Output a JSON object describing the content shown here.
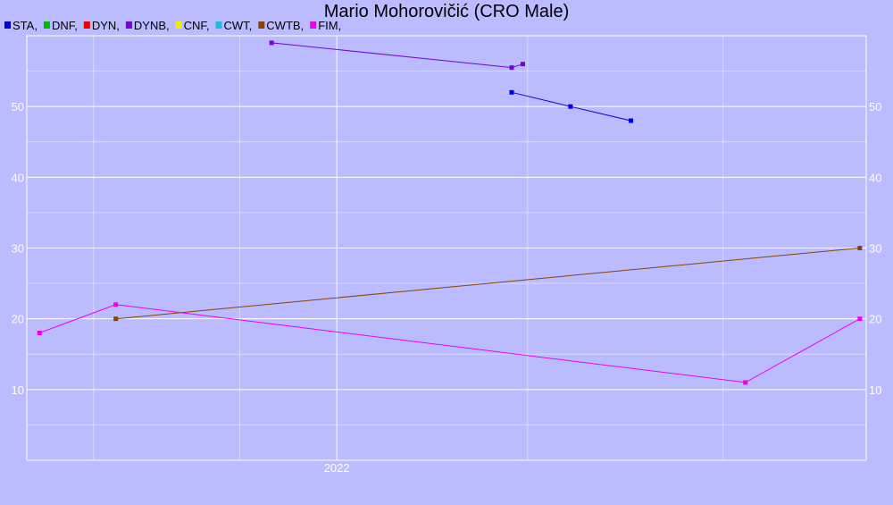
{
  "chart_data": {
    "type": "line",
    "title": "Mario Mohorovičić (CRO Male)",
    "xlabel": "",
    "ylabel": "",
    "x_tick_labels": [
      "2022"
    ],
    "y_ticks": [
      10,
      20,
      30,
      40,
      50
    ],
    "ylim": [
      0,
      60
    ],
    "grid": true,
    "legend_placement": "top-left",
    "legend": [
      {
        "name": "STA",
        "label": "STA,",
        "color": "#0000dd"
      },
      {
        "name": "DNF",
        "label": "DNF,",
        "color": "#00bb00"
      },
      {
        "name": "DYN",
        "label": "DYN,",
        "color": "#ee0000"
      },
      {
        "name": "DYNB",
        "label": "DYNB,",
        "color": "#7700dd"
      },
      {
        "name": "CNF",
        "label": "CNF,",
        "color": "#eeee00"
      },
      {
        "name": "CWT",
        "label": "CWT,",
        "color": "#22bbdd"
      },
      {
        "name": "CWTB",
        "label": "CWTB,",
        "color": "#884400"
      },
      {
        "name": "FIM",
        "label": "FIM,",
        "color": "#ee00ee"
      }
    ],
    "series": [
      {
        "name": "STA",
        "color": "#0000dd",
        "points": [
          {
            "x": "2022-04-21",
            "y": 52
          },
          {
            "x": "2022-05-28",
            "y": 50
          },
          {
            "x": "2022-07-05",
            "y": 48
          }
        ]
      },
      {
        "name": "DYNB",
        "color": "#7700dd",
        "points": [
          {
            "x": "2021-11-21",
            "y": 59
          },
          {
            "x": "2022-04-21",
            "y": 55.5
          },
          {
            "x": "2022-04-28",
            "y": 56
          }
        ]
      },
      {
        "name": "CWTB",
        "color": "#884400",
        "points": [
          {
            "x": "2021-08-15",
            "y": 20
          },
          {
            "x": "2022-11-26",
            "y": 30
          }
        ]
      },
      {
        "name": "FIM",
        "color": "#ee00ee",
        "points": [
          {
            "x": "2021-06-28",
            "y": 18
          },
          {
            "x": "2021-08-15",
            "y": 22
          },
          {
            "x": "2022-09-15",
            "y": 11
          },
          {
            "x": "2022-11-26",
            "y": 20
          }
        ]
      }
    ]
  }
}
